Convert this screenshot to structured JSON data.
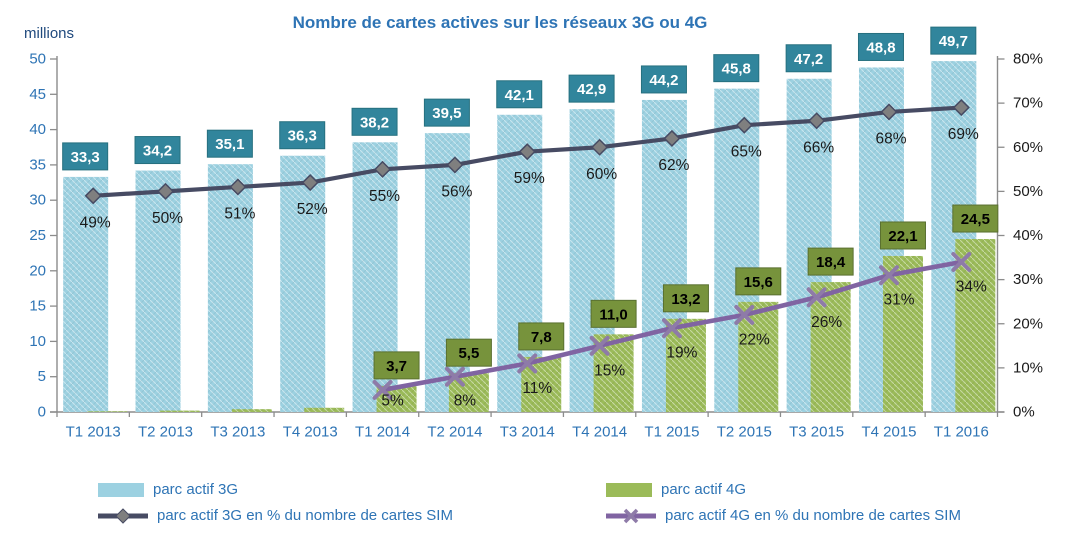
{
  "chart_data": {
    "type": "combo (clustered bars + two lines)",
    "title": "Nombre de cartes actives sur les réseaux 3G ou 4G",
    "left_axis": {
      "label": "millions",
      "min": 0,
      "max": 50,
      "step": 5,
      "ticks": [
        "0",
        "5",
        "10",
        "15",
        "20",
        "25",
        "30",
        "35",
        "40",
        "45",
        "50"
      ]
    },
    "right_axis": {
      "min": 0,
      "max": 80,
      "step": 10,
      "ticks": [
        "0%",
        "10%",
        "20%",
        "30%",
        "40%",
        "50%",
        "60%",
        "70%",
        "80%"
      ]
    },
    "categories": [
      "T1 2013",
      "T2 2013",
      "T3 2013",
      "T4 2013",
      "T1 2014",
      "T2 2014",
      "T3 2014",
      "T4 2014",
      "T1 2015",
      "T2 2015",
      "T3 2015",
      "T4 2015",
      "T1 2016"
    ],
    "series": [
      {
        "name": "parc actif 3G",
        "type": "bar",
        "axis": "left",
        "color": "#9CD1E1",
        "values": [
          33.3,
          34.2,
          35.1,
          36.3,
          38.2,
          39.5,
          42.1,
          42.9,
          44.2,
          45.8,
          47.2,
          48.8,
          49.7
        ],
        "labels": [
          "33,3",
          "34,2",
          "35,1",
          "36,3",
          "38,2",
          "39,5",
          "42,1",
          "42,9",
          "44,2",
          "45,8",
          "47,2",
          "48,8",
          "49,7"
        ],
        "label_box_color": "#31859C",
        "label_box_border": "#26707F",
        "label_text_color": "#FFFFFF"
      },
      {
        "name": "parc actif 4G",
        "type": "bar",
        "axis": "left",
        "color": "#9BBB59",
        "values": [
          0.1,
          0.2,
          0.4,
          0.6,
          3.7,
          5.5,
          7.8,
          11.0,
          13.2,
          15.6,
          18.4,
          22.1,
          24.5
        ],
        "labels": [
          null,
          null,
          null,
          null,
          "3,7",
          "5,5",
          "7,8",
          "11,0",
          "13,2",
          "15,6",
          "18,4",
          "22,1",
          "24,5"
        ],
        "label_box_color": "#77933C",
        "label_box_border": "#5A7030",
        "label_text_color": "#000000"
      },
      {
        "name": "parc actif 3G en % du nombre de cartes SIM",
        "type": "line",
        "axis": "right",
        "color": "#474B63",
        "marker": "diamond",
        "marker_color": "#7F7F7F",
        "values": [
          49,
          50,
          51,
          52,
          55,
          56,
          59,
          60,
          62,
          65,
          66,
          68,
          69
        ],
        "labels": [
          "49%",
          "50%",
          "51%",
          "52%",
          "55%",
          "56%",
          "59%",
          "60%",
          "62%",
          "65%",
          "66%",
          "68%",
          "69%"
        ]
      },
      {
        "name": "parc actif 4G en % du nombre de cartes SIM",
        "type": "line",
        "axis": "right",
        "color": "#8064A2",
        "marker": "x",
        "marker_color": "#8E7BA8",
        "values": [
          null,
          null,
          null,
          null,
          5,
          8,
          11,
          15,
          19,
          22,
          26,
          31,
          34
        ],
        "labels": [
          null,
          null,
          null,
          null,
          "5%",
          "8%",
          "11%",
          "15%",
          "19%",
          "22%",
          "26%",
          "31%",
          "34%"
        ]
      }
    ],
    "legend": [
      {
        "label": "parc actif 3G",
        "swatch": "bar"
      },
      {
        "label": "parc actif 3G en % du nombre de cartes SIM",
        "swatch": "line-diamond"
      },
      {
        "label": "parc actif 4G",
        "swatch": "bar"
      },
      {
        "label": "parc actif 4G en % du nombre de cartes SIM",
        "swatch": "line-x"
      }
    ],
    "colors": {
      "title": "#2E74B5",
      "left_tick_text": "#2E74B5",
      "right_tick_text": "#1A1A1A",
      "category_text": "#2E74B5",
      "percent_label_text": "#1A1A1A",
      "axis_line": "#8C8C8C"
    },
    "layout_hints": {
      "legend_position": "bottom",
      "grid": "off"
    }
  }
}
